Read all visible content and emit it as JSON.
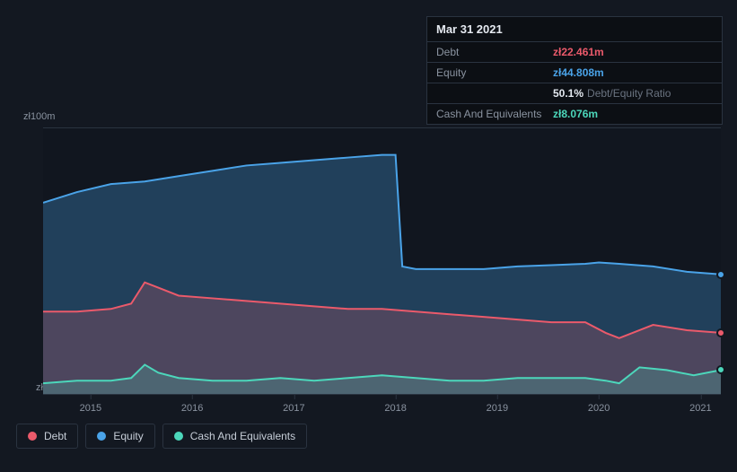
{
  "tooltip": {
    "date": "Mar 31 2021",
    "rows": [
      {
        "label": "Debt",
        "value": "zł22.461m",
        "color": "#eb5a6b"
      },
      {
        "label": "Equity",
        "value": "zł44.808m",
        "color": "#4aa3e8"
      },
      {
        "label": "",
        "value": "50.1%",
        "suffix": "Debt/Equity Ratio",
        "color": "#e4e9f0"
      },
      {
        "label": "Cash And Equivalents",
        "value": "zł8.076m",
        "color": "#4cd7bb"
      }
    ]
  },
  "chart": {
    "type": "area",
    "background_color": "#11161f",
    "grid_color": "#2a3340",
    "y_axis": {
      "top_label": "zł100m",
      "bottom_label": "zł0",
      "min": 0,
      "max": 100,
      "label_fontsize": 11,
      "label_color": "#8a93a0"
    },
    "x_axis": {
      "ticks": [
        "2015",
        "2016",
        "2017",
        "2018",
        "2019",
        "2020",
        "2021"
      ],
      "tick_positions_pct": [
        7,
        22,
        37,
        52,
        67,
        82,
        97
      ],
      "label_fontsize": 11,
      "label_color": "#8a93a0"
    },
    "series": [
      {
        "name": "Equity",
        "color": "#4aa3e8",
        "fill_opacity": 0.3,
        "line_width": 2,
        "x_pct": [
          0,
          5,
          10,
          15,
          20,
          25,
          30,
          35,
          40,
          45,
          50,
          52,
          53,
          55,
          60,
          65,
          70,
          75,
          80,
          82,
          85,
          90,
          95,
          100
        ],
        "y_val": [
          72,
          76,
          79,
          80,
          82,
          84,
          86,
          87,
          88,
          89,
          90,
          90,
          48,
          47,
          47,
          47,
          48,
          48.5,
          49,
          49.5,
          49,
          48,
          46,
          45
        ],
        "end_marker": true
      },
      {
        "name": "Debt",
        "color": "#eb5a6b",
        "fill_opacity": 0.22,
        "line_width": 2,
        "x_pct": [
          0,
          5,
          10,
          13,
          15,
          17,
          20,
          25,
          30,
          35,
          40,
          45,
          50,
          55,
          60,
          65,
          70,
          75,
          80,
          83,
          85,
          90,
          95,
          100
        ],
        "y_val": [
          31,
          31,
          32,
          34,
          42,
          40,
          37,
          36,
          35,
          34,
          33,
          32,
          32,
          31,
          30,
          29,
          28,
          27,
          27,
          23,
          21,
          26,
          24,
          23
        ],
        "end_marker": true
      },
      {
        "name": "Cash And Equivalents",
        "color": "#4cd7bb",
        "fill_opacity": 0.22,
        "line_width": 2,
        "x_pct": [
          0,
          5,
          10,
          13,
          15,
          17,
          20,
          25,
          30,
          35,
          40,
          45,
          50,
          55,
          60,
          65,
          70,
          75,
          80,
          83,
          85,
          88,
          92,
          96,
          100
        ],
        "y_val": [
          4,
          5,
          5,
          6,
          11,
          8,
          6,
          5,
          5,
          6,
          5,
          6,
          7,
          6,
          5,
          5,
          6,
          6,
          6,
          5,
          4,
          10,
          9,
          7,
          9
        ],
        "end_marker": true
      }
    ]
  },
  "legend": {
    "items": [
      {
        "label": "Debt",
        "color": "#eb5a6b"
      },
      {
        "label": "Equity",
        "color": "#4aa3e8"
      },
      {
        "label": "Cash And Equivalents",
        "color": "#4cd7bb"
      }
    ],
    "border_color": "#2a3340",
    "text_color": "#c6cdd7",
    "fontsize": 12
  }
}
